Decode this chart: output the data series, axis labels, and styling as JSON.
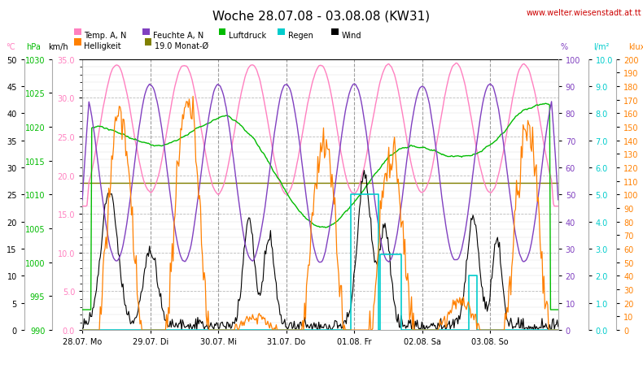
{
  "title": "Woche 28.07.08 - 03.08.08 (KW31)",
  "watermark": "www.welter.wiesenstadt.at.tt",
  "bg_color": "#ffffff",
  "x_labels": [
    "28.07. Mo",
    "29.07. Di",
    "30.07. Mi",
    "31.07. Do",
    "01.08. Fr",
    "02.08. Sa",
    "03.08. So"
  ],
  "temp_color": "#ff80c0",
  "feuchte_color": "#8040c0",
  "luftdruck_color": "#00bb00",
  "regen_color": "#00cccc",
  "wind_color": "#000000",
  "helligkeit_color": "#ff8000",
  "monat_color": "#808000",
  "temp_min": 0.0,
  "temp_max": 35.0,
  "hpa_min": 990,
  "hpa_max": 1030,
  "kmh_min": 0,
  "kmh_max": 50,
  "pct_min": 0,
  "pct_max": 100,
  "lm2_min": 0.0,
  "lm2_max": 10.0,
  "klux_min": 0,
  "klux_max": 200,
  "monat_avg_temp": 19.0,
  "n_points": 504,
  "legend_row1": [
    {
      "label": "Temp. A, N",
      "color": "#ff80c0"
    },
    {
      "label": "Feuchte A, N",
      "color": "#8040c0"
    },
    {
      "label": "Luftdruck",
      "color": "#00bb00"
    },
    {
      "label": "Regen",
      "color": "#00cccc"
    },
    {
      "label": "Wind",
      "color": "#000000"
    }
  ],
  "legend_row2": [
    {
      "label": "Helligkeit",
      "color": "#ff8000"
    },
    {
      "label": "19.0 Monat-Ø",
      "color": "#808000"
    }
  ]
}
